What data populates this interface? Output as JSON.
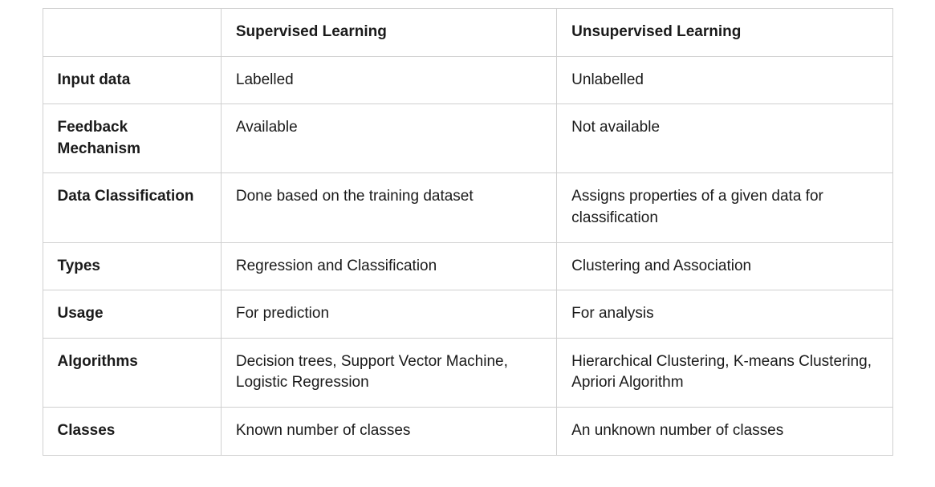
{
  "table": {
    "columns": [
      "",
      "Supervised Learning",
      "Unsupervised Learning"
    ],
    "column_widths": [
      "21%",
      "39.5%",
      "39.5%"
    ],
    "header_fontweight": 600,
    "rowlabel_fontweight": 600,
    "cell_fontsize": 19,
    "border_color": "#d0d0d0",
    "text_color": "#1a1a1a",
    "background_color": "#ffffff",
    "rows": [
      {
        "label": "Input data",
        "supervised": "Labelled",
        "unsupervised": "Unlabelled"
      },
      {
        "label": "Feedback Mechanism",
        "supervised": "Available",
        "unsupervised": "Not available"
      },
      {
        "label": "Data Classification",
        "supervised": "Done based on the training dataset",
        "unsupervised": "Assigns properties of a given data for classification"
      },
      {
        "label": "Types",
        "supervised": "Regression and Classification",
        "unsupervised": "Clustering and Association"
      },
      {
        "label": "Usage",
        "supervised": "For prediction",
        "unsupervised": "For analysis"
      },
      {
        "label": "Algorithms",
        "supervised": "Decision trees, Support Vector Machine, Logistic Regression",
        "unsupervised": "Hierarchical Clustering, K-means Clustering, Apriori Algorithm"
      },
      {
        "label": "Classes",
        "supervised": "Known number of classes",
        "unsupervised": "An unknown number of classes"
      }
    ]
  }
}
